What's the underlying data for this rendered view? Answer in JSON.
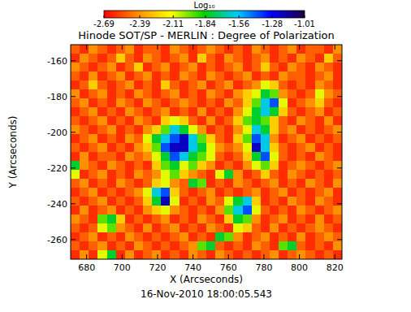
{
  "chart_data": {
    "type": "heatmap",
    "title": "Hinode SOT/SP - MERLIN : Degree of Polarization",
    "x_label": "X (Arcseconds)",
    "y_label": "Y (Arcseconds)",
    "annotation": "16-Nov-2010 18:00:05.543",
    "xlim": [
      671,
      824
    ],
    "ylim": [
      -271,
      -151
    ],
    "xticks": [
      680,
      700,
      720,
      740,
      760,
      780,
      800,
      820
    ],
    "yticks": [
      -260,
      -240,
      -220,
      -200,
      -180,
      -160
    ],
    "colorbar_label": "Log₁₀",
    "colorbar_range": [
      -2.69,
      -1.01
    ],
    "colorbar_ticks": [
      -2.69,
      -2.39,
      -2.11,
      -1.84,
      -1.56,
      -1.28,
      -1.01
    ],
    "cells": [
      [
        -2.5,
        -2.6,
        -2.4,
        -2.5,
        -2.6,
        -2.5,
        -2.4,
        -2.6,
        -2.5,
        -2.5,
        -2.6,
        -2.4,
        -2.5,
        -2.6,
        -2.5,
        -2.4,
        -2.5,
        -2.6,
        -2.5,
        -2.6,
        -2.4,
        -2.5,
        -2.6,
        -2.5,
        -2.4,
        -2.6,
        -2.5,
        -2.5,
        -2.6,
        -2.4
      ],
      [
        -2.6,
        -2.4,
        -2.5,
        -2.6,
        -2.5,
        -2.25,
        -2.5,
        -2.6,
        -2.4,
        -2.5,
        -2.6,
        -2.5,
        -2.4,
        -2.6,
        -2.25,
        -2.5,
        -2.6,
        -2.4,
        -2.5,
        -2.6,
        -2.5,
        -2.4,
        -2.6,
        -2.5,
        -2.6,
        -2.4,
        -2.5,
        -2.6,
        -2.25,
        -2.5
      ],
      [
        -2.4,
        -2.5,
        -2.6,
        -2.5,
        -2.4,
        -2.6,
        -2.5,
        -2.25,
        -2.6,
        -2.5,
        -2.4,
        -2.6,
        -2.5,
        -2.4,
        -2.6,
        -2.5,
        -2.6,
        -2.5,
        -2.4,
        -2.6,
        -2.5,
        -2.25,
        -2.5,
        -2.6,
        -2.4,
        -2.5,
        -2.6,
        -2.4,
        -2.5,
        -2.6
      ],
      [
        -2.5,
        -2.6,
        -2.4,
        -2.6,
        -2.5,
        -2.4,
        -2.6,
        -2.5,
        -2.4,
        -2.6,
        -2.5,
        -2.6,
        -2.4,
        -2.5,
        -2.6,
        -2.4,
        -2.5,
        -2.6,
        -2.5,
        -2.4,
        -2.6,
        -2.5,
        -2.6,
        -2.4,
        -2.5,
        -2.5,
        -2.6,
        -2.5,
        -2.4,
        -2.6
      ],
      [
        -2.6,
        -2.5,
        -2.25,
        -2.5,
        -2.6,
        -2.5,
        -2.4,
        -2.6,
        -2.5,
        -2.6,
        -2.25,
        -2.5,
        -2.6,
        -2.5,
        -2.4,
        -2.6,
        -2.5,
        -2.4,
        -2.6,
        -2.5,
        -2.4,
        -2.1,
        -2.25,
        -2.5,
        -2.6,
        -2.5,
        -2.6,
        -2.4,
        -2.5,
        -2.6
      ],
      [
        -2.4,
        -2.6,
        -2.5,
        -2.4,
        -2.6,
        -2.5,
        -2.6,
        -2.4,
        -2.5,
        -2.6,
        -2.5,
        -2.4,
        -2.6,
        -2.5,
        -2.6,
        -2.4,
        -2.5,
        -2.6,
        -2.4,
        -2.25,
        -2.1,
        -1.8,
        -1.95,
        -2.4,
        -2.5,
        -2.6,
        -2.5,
        -2.1,
        -2.4,
        -2.5
      ],
      [
        -2.5,
        -2.4,
        -2.6,
        -2.5,
        -2.6,
        -2.4,
        -2.5,
        -2.6,
        -2.4,
        -2.5,
        -2.6,
        -2.5,
        -2.4,
        -2.5,
        -2.6,
        -2.5,
        -2.6,
        -2.4,
        -2.5,
        -2.25,
        -1.95,
        -1.6,
        -1.4,
        -2.1,
        -2.6,
        -2.5,
        -2.4,
        -2.25,
        -2.5,
        -2.6
      ],
      [
        -2.6,
        -2.5,
        -2.4,
        -2.6,
        -2.5,
        -2.6,
        -2.4,
        -2.5,
        -2.6,
        -2.5,
        -2.4,
        -2.6,
        -2.5,
        -2.6,
        -2.4,
        -2.6,
        -2.5,
        -2.6,
        -2.4,
        -2.1,
        -1.8,
        -1.6,
        -1.8,
        -2.25,
        -2.5,
        -2.6,
        -2.5,
        -2.4,
        -2.6,
        -2.5
      ],
      [
        -2.5,
        -2.6,
        -2.5,
        -2.4,
        -2.6,
        -2.5,
        -2.6,
        -2.4,
        -2.5,
        -2.6,
        -2.25,
        -2.1,
        -2.25,
        -2.5,
        -2.6,
        -2.4,
        -2.6,
        -2.5,
        -2.25,
        -1.95,
        -1.8,
        -1.95,
        -2.25,
        -2.5,
        -2.6,
        -2.4,
        -2.5,
        -2.6,
        -2.4,
        -2.6
      ],
      [
        -2.4,
        -2.5,
        -2.6,
        -2.5,
        -2.4,
        -2.6,
        -2.5,
        -2.6,
        -2.4,
        -2.25,
        -1.95,
        -1.6,
        -1.8,
        -2.1,
        -2.4,
        -2.6,
        -2.5,
        -2.6,
        -2.4,
        -2.1,
        -1.6,
        -1.8,
        -2.25,
        -2.5,
        -2.4,
        -2.6,
        -2.5,
        -2.6,
        -2.5,
        -2.4
      ],
      [
        -2.6,
        -2.5,
        -2.4,
        -2.6,
        -2.5,
        -2.6,
        -2.4,
        -2.5,
        -2.1,
        -1.8,
        -1.6,
        -1.4,
        -1.2,
        -1.6,
        -1.95,
        -2.25,
        -2.5,
        -2.6,
        -2.25,
        -1.95,
        -1.4,
        -1.6,
        -2.4,
        -2.6,
        -2.5,
        -2.4,
        -2.6,
        -2.5,
        -2.6,
        -2.5
      ],
      [
        -2.5,
        -2.6,
        -2.5,
        -2.4,
        -2.6,
        -2.5,
        -2.6,
        -2.4,
        -2.25,
        -1.95,
        -1.4,
        -1.2,
        -1.2,
        -1.6,
        -1.8,
        -2.1,
        -2.4,
        -2.5,
        -2.4,
        -2.1,
        -1.2,
        -1.6,
        -2.25,
        -2.5,
        -2.6,
        -2.5,
        -2.4,
        -2.6,
        -2.5,
        -2.6
      ],
      [
        -2.6,
        -2.4,
        -2.6,
        -2.5,
        -2.5,
        -2.6,
        -2.4,
        -2.5,
        -2.4,
        -2.1,
        -1.8,
        -1.4,
        -1.6,
        -1.8,
        -1.95,
        -2.1,
        -2.5,
        -2.6,
        -2.5,
        -2.25,
        -1.8,
        -1.4,
        -2.1,
        -2.5,
        -2.6,
        -2.5,
        -2.6,
        -2.4,
        -2.5,
        -2.6
      ],
      [
        -1.8,
        -2.4,
        -2.5,
        -2.6,
        -2.4,
        -2.5,
        -2.6,
        -2.5,
        -2.6,
        -2.25,
        -1.95,
        -1.8,
        -2.1,
        -1.95,
        -2.25,
        -2.4,
        -2.6,
        -2.5,
        -2.6,
        -2.4,
        -2.1,
        -1.95,
        -2.25,
        -2.6,
        -2.5,
        -2.4,
        -2.5,
        -2.6,
        -2.5,
        -2.4
      ],
      [
        -2.1,
        -2.6,
        -2.5,
        -2.4,
        -2.6,
        -2.5,
        -2.6,
        -2.4,
        -2.5,
        -2.4,
        -2.1,
        -1.95,
        -2.25,
        -2.4,
        -2.5,
        -2.6,
        -2.1,
        -1.8,
        -2.4,
        -2.6,
        -2.5,
        -2.25,
        -2.5,
        -2.6,
        -2.4,
        -2.5,
        -2.6,
        -2.5,
        -2.6,
        -2.5
      ],
      [
        -2.5,
        -2.4,
        -2.6,
        -2.5,
        -2.6,
        -2.4,
        -2.5,
        -2.6,
        -2.5,
        -2.25,
        -2.1,
        -2.4,
        -2.5,
        -1.8,
        -1.95,
        -2.6,
        -2.5,
        -2.6,
        -2.4,
        -2.5,
        -2.6,
        -2.5,
        -2.4,
        -2.6,
        -2.5,
        -2.6,
        -2.4,
        -2.5,
        -2.6,
        -2.4
      ],
      [
        -2.6,
        -2.5,
        -2.4,
        -2.6,
        -2.5,
        -2.6,
        -2.5,
        -2.4,
        -2.1,
        -1.6,
        -1.4,
        -2.25,
        -2.5,
        -2.6,
        -2.5,
        -2.4,
        -2.6,
        -2.5,
        -2.6,
        -2.5,
        -2.4,
        -2.6,
        -2.5,
        -2.4,
        -2.6,
        -2.5,
        -2.6,
        -2.5,
        -2.4,
        -2.6
      ],
      [
        -2.5,
        -2.6,
        -2.5,
        -2.4,
        -2.6,
        -2.5,
        -2.6,
        -2.5,
        -2.25,
        -1.8,
        -1.2,
        -2.1,
        -2.6,
        -2.5,
        -2.6,
        -2.4,
        -2.5,
        -2.1,
        -1.8,
        -1.6,
        -2.25,
        -2.6,
        -2.5,
        -2.6,
        -2.4,
        -2.5,
        -2.6,
        -2.4,
        -2.5,
        -2.6
      ],
      [
        -2.6,
        -2.4,
        -2.6,
        -2.5,
        -2.4,
        -2.6,
        -2.5,
        -2.6,
        -2.4,
        -2.25,
        -2.1,
        -2.4,
        -2.5,
        -2.6,
        -2.5,
        -2.6,
        -2.4,
        -1.95,
        -1.6,
        -1.4,
        -2.1,
        -2.5,
        -2.6,
        -2.5,
        -2.6,
        -2.4,
        -2.5,
        -2.6,
        -2.5,
        -2.4
      ],
      [
        -2.4,
        -2.5,
        -2.6,
        -1.95,
        -1.8,
        -2.25,
        -2.6,
        -2.5,
        -2.6,
        -2.5,
        -2.4,
        -2.6,
        -2.5,
        -2.6,
        -2.4,
        -2.5,
        -2.6,
        -2.25,
        -1.8,
        -1.95,
        -2.4,
        -2.6,
        -2.5,
        -2.4,
        -2.6,
        -2.5,
        -2.6,
        -2.4,
        -2.6,
        -2.5
      ],
      [
        -2.5,
        -2.6,
        -2.5,
        -2.1,
        -1.95,
        -2.4,
        -2.5,
        -2.6,
        -2.4,
        -2.6,
        -2.5,
        -2.4,
        -2.6,
        -2.5,
        -2.6,
        -2.4,
        -2.5,
        -2.6,
        -2.1,
        -2.25,
        -2.5,
        -2.6,
        -2.4,
        -2.6,
        -2.5,
        -2.6,
        -2.5,
        -2.4,
        -2.5,
        -2.6
      ],
      [
        -2.6,
        -2.5,
        -2.4,
        -2.6,
        -2.5,
        -2.6,
        -2.4,
        -2.5,
        -2.6,
        -2.5,
        -2.6,
        -2.5,
        -2.4,
        -2.6,
        -2.5,
        -2.6,
        -1.8,
        -1.95,
        -2.4,
        -2.6,
        -2.5,
        -2.4,
        -2.6,
        -2.5,
        -2.6,
        -2.4,
        -2.6,
        -2.5,
        -2.4,
        -2.5
      ],
      [
        -2.5,
        -2.6,
        -2.5,
        -2.4,
        -2.6,
        -2.5,
        -2.6,
        -2.4,
        -2.5,
        -2.6,
        -2.5,
        -2.6,
        -2.5,
        -2.4,
        -1.95,
        -1.8,
        -2.5,
        -2.6,
        -2.5,
        -2.6,
        -2.4,
        -2.5,
        -2.6,
        -1.95,
        -1.8,
        -2.5,
        -2.6,
        -2.5,
        -2.6,
        -2.4
      ],
      [
        -2.6,
        -2.4,
        -2.6,
        -2.1,
        -1.8,
        -2.6,
        -2.4,
        -2.6,
        -2.5,
        -2.4,
        -2.6,
        -2.5,
        -2.6,
        -2.4,
        -2.5,
        -2.6,
        -2.4,
        -2.5,
        -2.6,
        -2.5,
        -2.6,
        -2.5,
        -2.4,
        -2.6,
        -2.5,
        -2.4,
        -2.5,
        -2.6,
        -2.5,
        -2.6
      ]
    ]
  }
}
